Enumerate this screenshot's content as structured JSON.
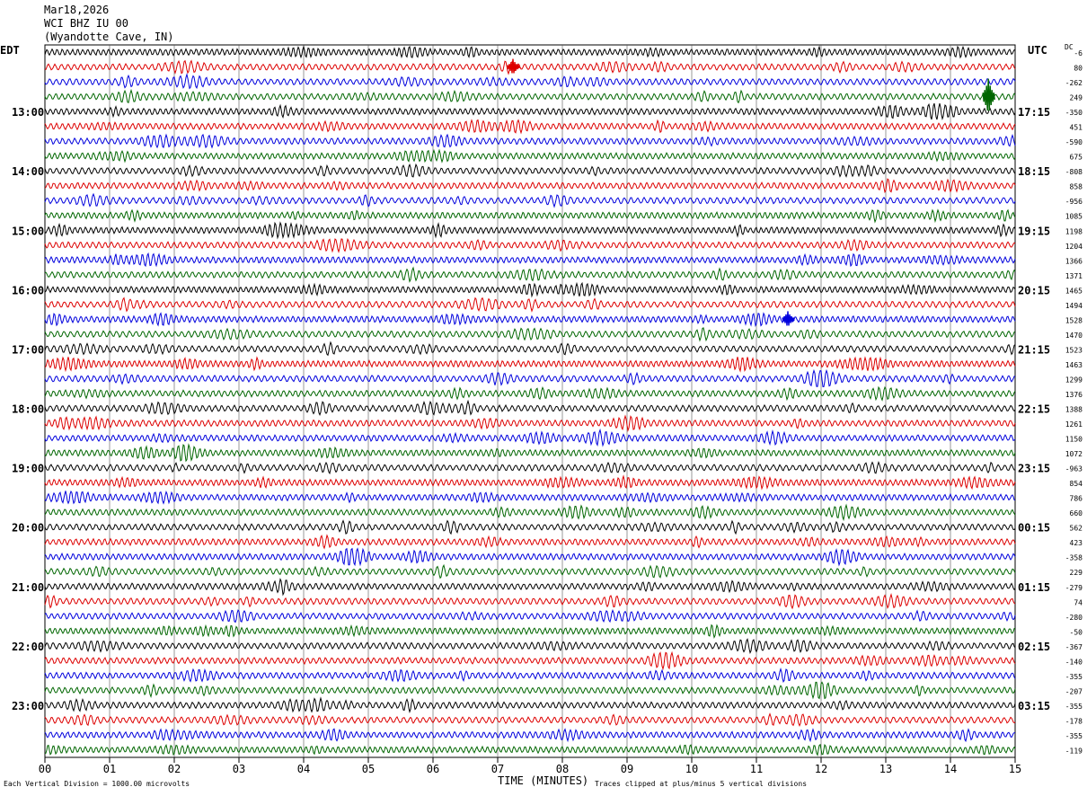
{
  "header": {
    "date": "Mar18,2026",
    "station": "WCI BHZ IU 00",
    "location": "(Wyandotte Cave, IN)"
  },
  "chart_data": {
    "type": "line",
    "subtype": "helicorder",
    "left_timezone": "EDT",
    "right_timezone": "UTC",
    "dc_label": "DC",
    "xlabel": "TIME (MINUTES)",
    "xlim": [
      0,
      15
    ],
    "x_ticks": [
      "00",
      "01",
      "02",
      "03",
      "04",
      "05",
      "06",
      "07",
      "08",
      "09",
      "10",
      "11",
      "12",
      "13",
      "14",
      "15"
    ],
    "rows_per_hour": 4,
    "minutes_per_row": 15,
    "trace_colors": [
      "#000000",
      "#dd0000",
      "#0000dd",
      "#006600"
    ],
    "left_hour_labels": [
      "13:00",
      "14:00",
      "15:00",
      "16:00",
      "17:00",
      "18:00",
      "19:00",
      "20:00",
      "21:00",
      "22:00",
      "23:00"
    ],
    "right_hour_labels": [
      "17:15",
      "18:15",
      "19:15",
      "20:15",
      "21:15",
      "22:15",
      "23:15",
      "00:15",
      "01:15",
      "02:15",
      "03:15"
    ],
    "dc_offsets": [
      "-6",
      "80",
      "-262",
      "249",
      "-350",
      "451",
      "-590",
      "675",
      "-808",
      "858",
      "-956",
      "1085",
      "1198",
      "1204",
      "1366",
      "1371",
      "1465",
      "1494",
      "1528",
      "1470",
      "1523",
      "1463",
      "1299",
      "1376",
      "1388",
      "1261",
      "1150",
      "1072",
      "-963",
      "854",
      "786",
      "660",
      "562",
      "423",
      "-358",
      "229",
      "-279",
      "74",
      "-280",
      "-50",
      "-367",
      "-140",
      "-355",
      "-207",
      "-355",
      "-178",
      "-355",
      "-119"
    ],
    "events": [
      {
        "row": 1,
        "minute": 7.25,
        "label": "red trace burst"
      },
      {
        "row": 3,
        "minute": 14.6,
        "label": "green trace spike"
      },
      {
        "row": 18,
        "minute": 11.5,
        "label": "blue trace spike"
      }
    ]
  },
  "footer": {
    "scale_note": "Each Vertical Division = 1000.00 microvolts",
    "clip_note": "Traces clipped at plus/minus 5 vertical divisions"
  }
}
